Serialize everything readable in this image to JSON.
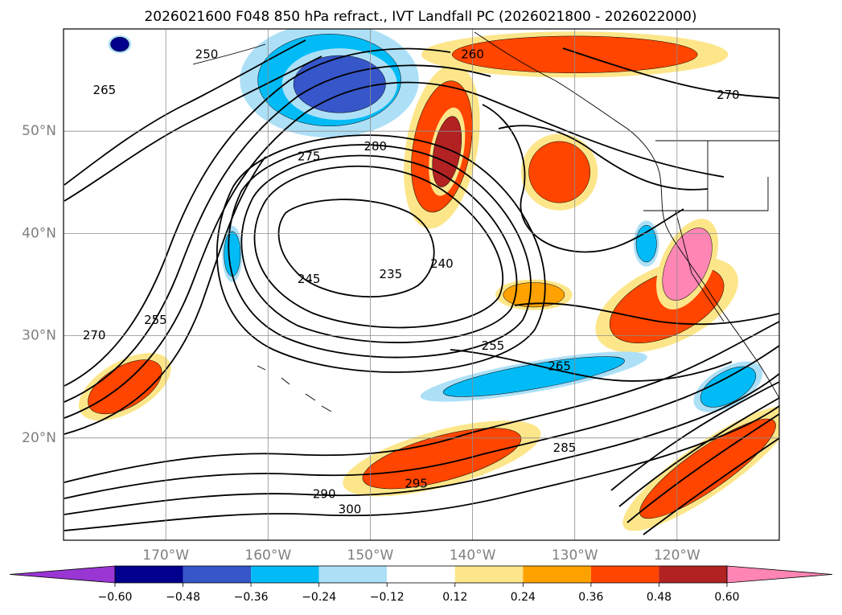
{
  "title": "2026021600 F048 850 hPa refract., IVT Landfall PC (2026021800 - 2026022000)",
  "map": {
    "lon_range": [
      -180,
      -110
    ],
    "lat_range": [
      10,
      60
    ],
    "lon_ticks": [
      -170,
      -160,
      -150,
      -140,
      -130,
      -120
    ],
    "lat_ticks": [
      20,
      30,
      40,
      50
    ],
    "lon_tick_labels": [
      "170°W",
      "160°W",
      "150°W",
      "140°W",
      "130°W",
      "120°W"
    ],
    "lat_tick_labels": [
      "20°N",
      "30°N",
      "40°N",
      "50°N"
    ],
    "grid": true
  },
  "colorbar": {
    "orientation": "horizontal",
    "extend": "both",
    "boundaries": [
      -0.6,
      -0.48,
      -0.36,
      -0.24,
      -0.12,
      0.12,
      0.24,
      0.36,
      0.48,
      0.6
    ],
    "tick_labels": [
      "−0.60",
      "−0.48",
      "−0.36",
      "−0.24",
      "−0.12",
      "0.12",
      "0.24",
      "0.36",
      "0.48",
      "0.60"
    ],
    "colors": [
      "#9a36d4",
      "#00008c",
      "#3656c9",
      "#00bbf6",
      "#ade0f7",
      "#ffffff",
      "#fde68a",
      "#ffa200",
      "#ff4500",
      "#b22222",
      "#ff86b4"
    ]
  },
  "fill_patches": [
    {
      "level": -0.36,
      "lon": -154,
      "lat": 55,
      "rx": 7,
      "ry": 4.5,
      "rot": 0
    },
    {
      "level": -0.48,
      "lon": -153,
      "lat": 54.6,
      "rx": 4.5,
      "ry": 2.8,
      "rot": 0
    },
    {
      "level": -0.6,
      "lon": -174.5,
      "lat": 58.5,
      "rx": 0.9,
      "ry": 0.7,
      "rot": 0
    },
    {
      "level": 0.36,
      "lon": -143,
      "lat": 48.5,
      "rx": 2.8,
      "ry": 6.5,
      "rot": 10
    },
    {
      "level": 0.48,
      "lon": -142.5,
      "lat": 48,
      "rx": 1.3,
      "ry": 3.5,
      "rot": 10
    },
    {
      "level": 0.36,
      "lon": -131.5,
      "lat": 46,
      "rx": 3,
      "ry": 3,
      "rot": 0
    },
    {
      "level": 0.36,
      "lon": -130,
      "lat": 57.5,
      "rx": 12,
      "ry": 1.8,
      "rot": 0
    },
    {
      "level": 0.36,
      "lon": -121,
      "lat": 33,
      "rx": 6,
      "ry": 3,
      "rot": -25
    },
    {
      "level": 0.6,
      "lon": -119,
      "lat": 37,
      "rx": 2,
      "ry": 3.8,
      "rot": 25
    },
    {
      "level": 0.36,
      "lon": -143,
      "lat": 18,
      "rx": 8,
      "ry": 2.2,
      "rot": -15
    },
    {
      "level": 0.36,
      "lon": -117,
      "lat": 17,
      "rx": 8,
      "ry": 2,
      "rot": -35
    },
    {
      "level": 0.36,
      "lon": -174,
      "lat": 25,
      "rx": 4,
      "ry": 2,
      "rot": -30
    },
    {
      "level": 0.24,
      "lon": -134,
      "lat": 34,
      "rx": 3,
      "ry": 1.2,
      "rot": 0
    },
    {
      "level": -0.36,
      "lon": -134,
      "lat": 26,
      "rx": 9,
      "ry": 1.2,
      "rot": -10
    },
    {
      "level": -0.36,
      "lon": -115,
      "lat": 25,
      "rx": 3,
      "ry": 1.5,
      "rot": -30
    },
    {
      "level": -0.36,
      "lon": -163.5,
      "lat": 38,
      "rx": 0.8,
      "ry": 2.2,
      "rot": 0
    },
    {
      "level": -0.36,
      "lon": -123,
      "lat": 39,
      "rx": 1,
      "ry": 1.8,
      "rot": 0
    }
  ],
  "contours": [
    {
      "label": "235",
      "lon": -148,
      "lat": 36
    },
    {
      "label": "240",
      "lon": -143,
      "lat": 37
    },
    {
      "label": "245",
      "lon": -156,
      "lat": 35.5
    },
    {
      "label": "250",
      "lon": -166,
      "lat": 57.5
    },
    {
      "label": "255",
      "lon": -171,
      "lat": 31.5
    },
    {
      "label": "260",
      "lon": -140,
      "lat": 57.5
    },
    {
      "label": "265",
      "lon": -176,
      "lat": 54
    },
    {
      "label": "270",
      "lon": -115,
      "lat": 53.5
    },
    {
      "label": "275",
      "lon": -156,
      "lat": 47.5
    },
    {
      "label": "280",
      "lon": -149.5,
      "lat": 48.5
    },
    {
      "label": "285",
      "lon": -131,
      "lat": 19
    },
    {
      "label": "290",
      "lon": -154.5,
      "lat": 14.5
    },
    {
      "label": "295",
      "lon": -145.5,
      "lat": 15.5
    },
    {
      "label": "300",
      "lon": -152,
      "lat": 13
    },
    {
      "label": "265",
      "lon": -131.5,
      "lat": 27
    },
    {
      "label": "255",
      "lon": -138,
      "lat": 29
    },
    {
      "label": "270",
      "lon": -177,
      "lat": 30
    }
  ]
}
